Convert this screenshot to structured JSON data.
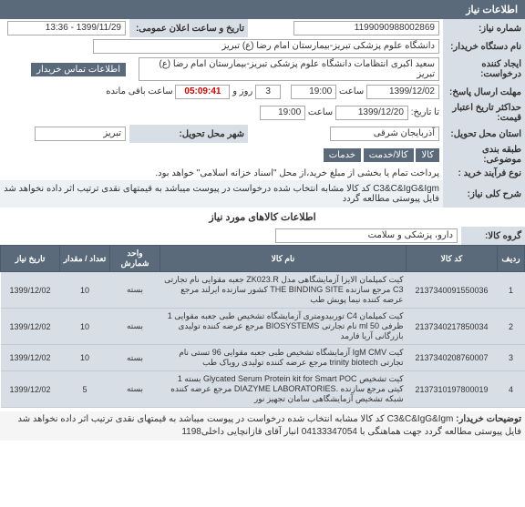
{
  "header1": "اطلاعات نیاز",
  "fields": {
    "need_number_label": "شماره نیاز:",
    "need_number": "1199090988002869",
    "announce_label": "تاریخ و ساعت اعلان عمومی:",
    "announce_value": "1399/11/29 - 13:36",
    "org_label": "نام دستگاه خریدار:",
    "org_value": "دانشگاه علوم پزشکی تبریز-بیمارستان امام رضا (ع) تبریز",
    "creator_label": "ایجاد کننده درخواست:",
    "creator_value": "سعید اکبری انتظامات دانشگاه علوم پزشکی تبریز-بیمارستان امام رضا (ع) تبریز",
    "contact_btn": "اطلاعات تماس خریدار",
    "deadline_label": "مهلت ارسال پاسخ:",
    "deadline_date": "1399/12/02",
    "time_label": "ساعت",
    "deadline_time": "19:00",
    "countdown": "05:09:41",
    "days": "3",
    "days_label": "روز و",
    "remain_label": "ساعت باقی مانده",
    "max_date_label": "حداکثر تاریخ اعتبار قیمت:",
    "max_date": "1399/12/20",
    "max_time": "19:00",
    "till_label": "تا تاریخ:",
    "delivery_state_label": "استان محل تحویل:",
    "delivery_state": "آذربایجان شرقی",
    "delivery_city_label": "شهر محل تحویل:",
    "delivery_city": "تبریز",
    "category_label": "طبقه بندی موضوعی:",
    "category_btn1": "خدمات",
    "category_btn2": "کالا/خدمت",
    "category_btn3": "کالا",
    "process_label": "نوع فرآیند خرید :",
    "process_value": "پرداخت تمام یا بخشی از مبلغ خرید،از محل \"اسناد خزانه اسلامی\" خواهد بود.",
    "desc_label": "شرح کلی نیاز:",
    "desc_value": "C3&C&IgG&Igm کد کالا مشابه انتخاب شده درخواست در پیوست میباشد به قیمتهای نقدی ترتیب اثر داده نخواهد شد فایل پیوستی مطالعه گردد"
  },
  "header2": "اطلاعات کالاهای مورد نیاز",
  "group_label": "گروه کالا:",
  "group_value": "دارو، پزشکی و سلامت",
  "table": {
    "headers": [
      "ردیف",
      "کد کالا",
      "نام کالا",
      "واحد شمارش",
      "تعداد / مقدار",
      "تاریخ نیاز"
    ],
    "rows": [
      [
        "1",
        "2137340091550036",
        "کیت کمپلمان الایزا آزمایشگاهی مدل ZK023.R جعبه مقوایی نام تجارتی C3 مرجع سازنده THE BINDING SITE کشور سازنده ایرلند مرجع عرضه کننده نیما پویش طب",
        "بسته",
        "10",
        "1399/12/02"
      ],
      [
        "2",
        "2137340217850034",
        "کیت کمپلمان C4 توربیدومتری آزمایشگاه تشخیص طبی جعبه مقوایی 1 ظرفی ml 50 نام تجارتی BIOSYSTEMS مرجع عرضه کننده تولیدی بازرگانی آریا فارمد",
        "بسته",
        "10",
        "1399/12/02"
      ],
      [
        "3",
        "2137340208760007",
        "کیت IgM CMV آزمایشگاه تشخیص طبی جعبه مقوایی 96 تستی نام تجارتی trinity biotech مرجع عرضه کننده تولیدی رویاک طب",
        "بسته",
        "10",
        "1399/12/02"
      ],
      [
        "4",
        "2137310197800019",
        "کیت تشخیص Glycated Serum Protein kit for Smart POC بسته 1 کیتی مرجع سازنده .DIAZYME LABORATORIES مرجع عرضه کننده شبکه تشخیص آزمایشگاهی سامان تجهیز نور",
        "بسته",
        "5",
        "1399/12/02"
      ]
    ]
  },
  "footer_label": "توضیحات خریدار:",
  "footer_value": "C3&C&IgG&Igm کد کالا مشابه انتخاب شده درخواست در پیوست میباشد به قیمتهای نقدی ترتیب اثر داده نخواهد شد فایل پیوستی مطالعه گردد جهت هماهنگی با 04133347054 انبار آقای قازانچایی داخلی1198",
  "colors": {
    "header_bg": "#5a6a7a",
    "label_bg": "#d8dee5",
    "row_bg": "#d8dee5"
  }
}
